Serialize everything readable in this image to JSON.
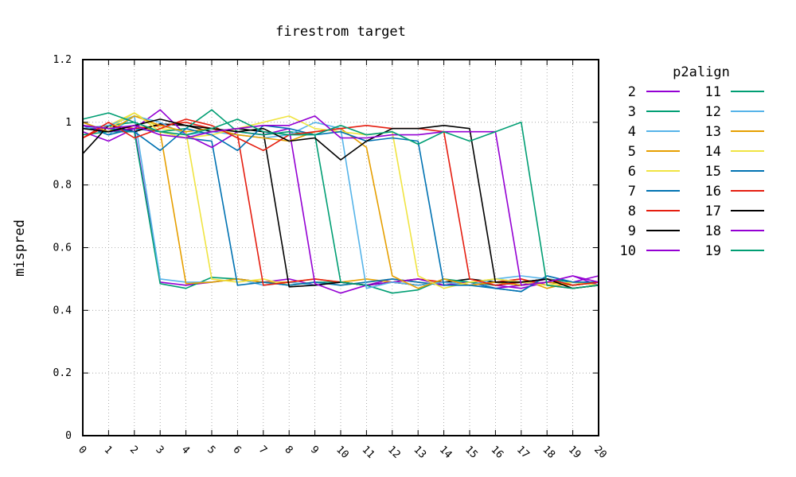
{
  "chart_data": {
    "type": "line",
    "title": "firestrom target",
    "xlabel": "",
    "ylabel": "mispred",
    "legend_title": "p2align",
    "legend_placement": "right",
    "grid": true,
    "xlim": [
      0,
      20
    ],
    "ylim": [
      0,
      1.2
    ],
    "x": [
      0,
      1,
      2,
      3,
      4,
      5,
      6,
      7,
      8,
      9,
      10,
      11,
      12,
      13,
      14,
      15,
      16,
      17,
      18,
      19,
      20
    ],
    "x_tick_labels": [
      "0",
      "1",
      "2",
      "3",
      "4",
      "5",
      "6",
      "7",
      "8",
      "9",
      "10",
      "11",
      "12",
      "13",
      "14",
      "15",
      "16",
      "17",
      "18",
      "19",
      "20"
    ],
    "y_ticks": [
      0,
      0.2,
      0.4,
      0.6,
      0.8,
      1,
      1.2
    ],
    "y_tick_labels": [
      "0",
      "0.2",
      "0.4",
      "0.6",
      "0.8",
      "1",
      "1.2"
    ],
    "series": [
      {
        "name": "2",
        "color": "#9400d3",
        "values": [
          0.97,
          0.94,
          0.98,
          0.49,
          0.48,
          0.49,
          0.5,
          0.49,
          0.5,
          0.48,
          0.49,
          0.48,
          0.5,
          0.49,
          0.48,
          0.49,
          0.47,
          0.48,
          0.5,
          0.49,
          0.51
        ]
      },
      {
        "name": "3",
        "color": "#009e73",
        "values": [
          0.96,
          0.97,
          0.97,
          0.485,
          0.47,
          0.505,
          0.5,
          0.49,
          0.48,
          0.49,
          0.49,
          0.48,
          0.49,
          0.5,
          0.48,
          0.49,
          0.48,
          0.49,
          0.5,
          0.49,
          0.49
        ]
      },
      {
        "name": "4",
        "color": "#56b4e9",
        "values": [
          0.99,
          0.96,
          1.02,
          0.5,
          0.49,
          0.49,
          0.5,
          0.48,
          0.49,
          0.48,
          0.49,
          0.48,
          0.49,
          0.48,
          0.49,
          0.49,
          0.5,
          0.51,
          0.5,
          0.48,
          0.49
        ]
      },
      {
        "name": "5",
        "color": "#e69f00",
        "values": [
          1.0,
          0.97,
          0.99,
          0.97,
          0.485,
          0.49,
          0.5,
          0.49,
          0.49,
          0.5,
          0.49,
          0.5,
          0.49,
          0.48,
          0.49,
          0.48,
          0.49,
          0.5,
          0.47,
          0.49,
          0.48
        ]
      },
      {
        "name": "6",
        "color": "#f0e442",
        "values": [
          0.98,
          0.99,
          1.03,
          0.98,
          0.97,
          0.5,
          0.49,
          0.5,
          0.48,
          0.49,
          0.48,
          0.49,
          0.5,
          0.49,
          0.48,
          0.49,
          0.5,
          0.49,
          0.48,
          0.49,
          0.48
        ]
      },
      {
        "name": "7",
        "color": "#0072b2",
        "values": [
          0.99,
          0.96,
          0.98,
          0.97,
          0.95,
          0.94,
          0.48,
          0.49,
          0.48,
          0.49,
          0.48,
          0.49,
          0.5,
          0.49,
          0.48,
          0.49,
          0.47,
          0.46,
          0.51,
          0.49,
          0.48
        ]
      },
      {
        "name": "8",
        "color": "#e51e10",
        "values": [
          0.95,
          0.99,
          0.98,
          0.99,
          1.0,
          0.98,
          0.96,
          0.48,
          0.49,
          0.5,
          0.49,
          0.48,
          0.49,
          0.5,
          0.49,
          0.48,
          0.49,
          0.5,
          0.48,
          0.47,
          0.48
        ]
      },
      {
        "name": "9",
        "color": "#000000",
        "values": [
          0.9,
          0.99,
          0.97,
          0.995,
          0.99,
          0.97,
          0.98,
          0.97,
          0.475,
          0.48,
          0.49,
          0.48,
          0.49,
          0.48,
          0.49,
          0.5,
          0.49,
          0.48,
          0.49,
          0.48,
          0.49
        ]
      },
      {
        "name": "10",
        "color": "#9400d3",
        "values": [
          0.99,
          0.97,
          0.98,
          1.04,
          0.96,
          0.92,
          0.97,
          0.96,
          0.98,
          0.485,
          0.455,
          0.48,
          0.49,
          0.5,
          0.48,
          0.49,
          0.48,
          0.47,
          0.49,
          0.51,
          0.48
        ]
      },
      {
        "name": "11",
        "color": "#009e73",
        "values": [
          0.98,
          0.99,
          1.0,
          0.97,
          0.98,
          1.04,
          0.97,
          0.96,
          0.97,
          0.96,
          0.49,
          0.48,
          0.455,
          0.465,
          0.5,
          0.49,
          0.48,
          0.49,
          0.5,
          0.48,
          0.49
        ]
      },
      {
        "name": "12",
        "color": "#56b4e9",
        "values": [
          0.98,
          0.99,
          1.02,
          1.0,
          0.96,
          0.97,
          0.96,
          0.95,
          0.96,
          1.0,
          0.98,
          0.47,
          0.49,
          0.48,
          0.49,
          0.48,
          0.5,
          0.49,
          0.48,
          0.49,
          0.48
        ]
      },
      {
        "name": "13",
        "color": "#e69f00",
        "values": [
          1.0,
          0.97,
          1.02,
          0.99,
          0.97,
          0.98,
          0.96,
          0.95,
          0.94,
          0.97,
          0.98,
          0.92,
          0.51,
          0.47,
          0.5,
          0.48,
          0.49,
          0.48,
          0.49,
          0.48,
          0.49
        ]
      },
      {
        "name": "14",
        "color": "#f0e442",
        "values": [
          0.99,
          0.98,
          1.03,
          0.97,
          0.95,
          0.96,
          0.98,
          1.0,
          1.02,
          0.98,
          0.97,
          0.96,
          0.97,
          0.51,
          0.47,
          0.49,
          0.5,
          0.49,
          0.48,
          0.49,
          0.48
        ]
      },
      {
        "name": "15",
        "color": "#0072b2",
        "values": [
          0.99,
          0.98,
          0.97,
          0.91,
          0.98,
          0.96,
          0.91,
          0.99,
          0.98,
          0.96,
          0.97,
          0.94,
          0.95,
          0.94,
          0.48,
          0.48,
          0.47,
          0.46,
          0.51,
          0.49,
          0.49
        ]
      },
      {
        "name": "16",
        "color": "#e51e10",
        "values": [
          0.95,
          1.0,
          0.95,
          0.98,
          1.01,
          0.99,
          0.95,
          0.91,
          0.96,
          0.97,
          0.98,
          0.99,
          0.98,
          0.98,
          0.97,
          0.5,
          0.48,
          0.49,
          0.5,
          0.48,
          0.49
        ]
      },
      {
        "name": "17",
        "color": "#000000",
        "values": [
          0.98,
          0.97,
          0.99,
          1.01,
          0.99,
          0.98,
          0.97,
          0.98,
          0.94,
          0.95,
          0.88,
          0.94,
          0.98,
          0.98,
          0.99,
          0.98,
          0.49,
          0.49,
          0.5,
          0.47,
          0.48
        ]
      },
      {
        "name": "18",
        "color": "#9400d3",
        "values": [
          0.99,
          0.98,
          0.99,
          0.96,
          0.95,
          0.97,
          0.98,
          0.99,
          0.99,
          1.02,
          0.95,
          0.95,
          0.96,
          0.96,
          0.97,
          0.97,
          0.97,
          0.48,
          0.49,
          0.51,
          0.49
        ]
      },
      {
        "name": "19",
        "color": "#009e73",
        "values": [
          1.01,
          1.03,
          1.0,
          0.97,
          0.96,
          0.98,
          1.01,
          0.97,
          0.96,
          0.96,
          0.99,
          0.96,
          0.97,
          0.93,
          0.97,
          0.94,
          0.97,
          1.0,
          0.48,
          0.47,
          0.48
        ]
      }
    ]
  }
}
